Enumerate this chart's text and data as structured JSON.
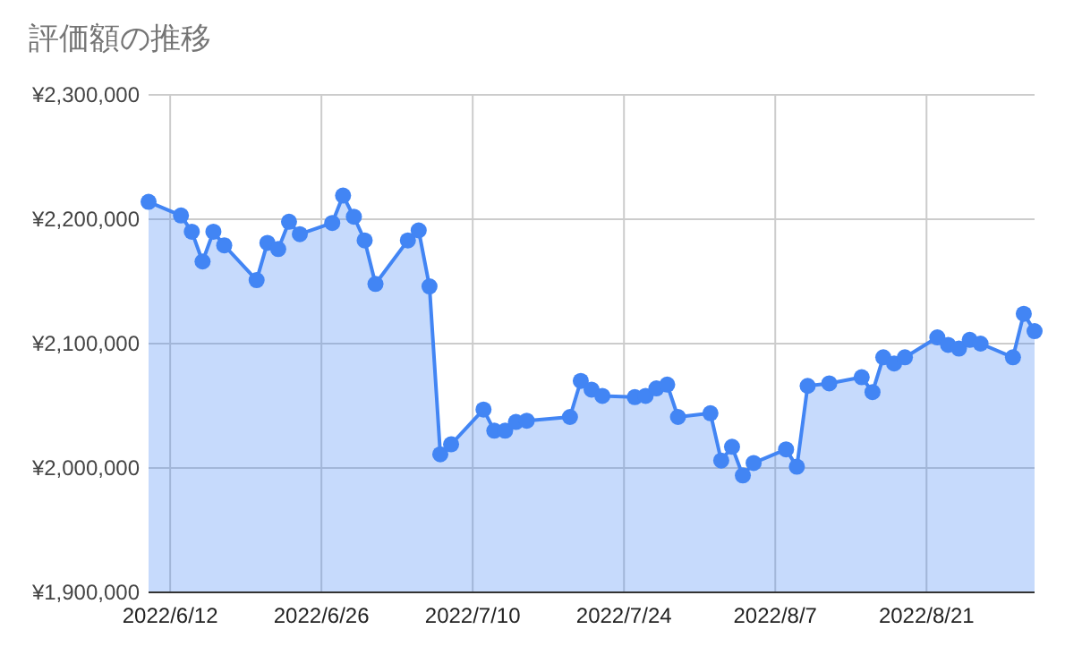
{
  "chart_data": {
    "type": "area",
    "title": "評価額の推移",
    "x": [
      "2022-06-10",
      "2022-06-13",
      "2022-06-14",
      "2022-06-15",
      "2022-06-16",
      "2022-06-17",
      "2022-06-20",
      "2022-06-21",
      "2022-06-22",
      "2022-06-23",
      "2022-06-24",
      "2022-06-27",
      "2022-06-28",
      "2022-06-29",
      "2022-06-30",
      "2022-07-01",
      "2022-07-04",
      "2022-07-05",
      "2022-07-06",
      "2022-07-07",
      "2022-07-08",
      "2022-07-11",
      "2022-07-12",
      "2022-07-13",
      "2022-07-14",
      "2022-07-15",
      "2022-07-19",
      "2022-07-20",
      "2022-07-21",
      "2022-07-22",
      "2022-07-25",
      "2022-07-26",
      "2022-07-27",
      "2022-07-28",
      "2022-07-29",
      "2022-08-01",
      "2022-08-02",
      "2022-08-03",
      "2022-08-04",
      "2022-08-05",
      "2022-08-08",
      "2022-08-09",
      "2022-08-10",
      "2022-08-12",
      "2022-08-15",
      "2022-08-16",
      "2022-08-17",
      "2022-08-18",
      "2022-08-19",
      "2022-08-22",
      "2022-08-23",
      "2022-08-24",
      "2022-08-25",
      "2022-08-26",
      "2022-08-29",
      "2022-08-30",
      "2022-08-31"
    ],
    "series": [
      {
        "color": "#4285f4",
        "values": [
          2214000,
          2203000,
          2190000,
          2166000,
          2190000,
          2179000,
          2151000,
          2181000,
          2176000,
          2198000,
          2188000,
          2197000,
          2219000,
          2202000,
          2183000,
          2148000,
          2183000,
          2191000,
          2146000,
          2011000,
          2019000,
          2047000,
          2030000,
          2030000,
          2037000,
          2038000,
          2041000,
          2070000,
          2063000,
          2058000,
          2057000,
          2058000,
          2064000,
          2067000,
          2041000,
          2044000,
          2006000,
          2017000,
          1994000,
          2004000,
          2015000,
          2001000,
          2066000,
          2068000,
          2073000,
          2061000,
          2089000,
          2084000,
          2089000,
          2105000,
          2099000,
          2096000,
          2103000,
          2100000,
          2089000,
          2124000,
          2110000
        ]
      }
    ],
    "xlim": [
      "2022-06-10",
      "2022-08-31"
    ],
    "xticks": [
      {
        "value": "2022-06-12",
        "label": "2022/6/12"
      },
      {
        "value": "2022-06-26",
        "label": "2022/6/26"
      },
      {
        "value": "2022-07-10",
        "label": "2022/7/10"
      },
      {
        "value": "2022-07-24",
        "label": "2022/7/24"
      },
      {
        "value": "2022-08-07",
        "label": "2022/8/7"
      },
      {
        "value": "2022-08-21",
        "label": "2022/8/21"
      }
    ],
    "ylim": [
      1900000,
      2300000
    ],
    "yticks": [
      {
        "value": 1900000,
        "label": "¥1,900,000"
      },
      {
        "value": 2000000,
        "label": "¥2,000,000"
      },
      {
        "value": 2100000,
        "label": "¥2,100,000"
      },
      {
        "value": 2200000,
        "label": "¥2,200,000"
      },
      {
        "value": 2300000,
        "label": "¥2,300,000"
      }
    ],
    "grid": true,
    "marker": "circle"
  }
}
